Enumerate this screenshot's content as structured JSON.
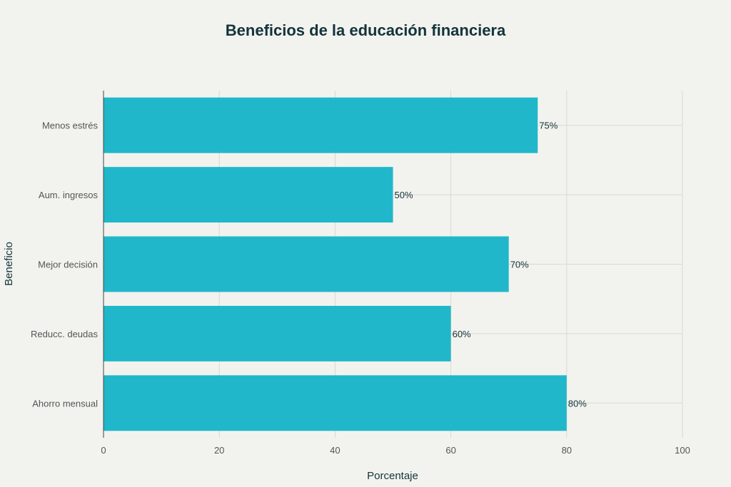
{
  "chart_data": {
    "type": "bar",
    "orientation": "horizontal",
    "title": "Beneficios de la educación financiera",
    "xlabel": "Porcentaje",
    "ylabel": "Beneficio",
    "categories": [
      "Menos estrés",
      "Aum. ingresos",
      "Mejor decisión",
      "Reducc. deudas",
      "Ahorro mensual"
    ],
    "values": [
      75,
      50,
      70,
      60,
      80
    ],
    "data_labels": [
      "75%",
      "50%",
      "70%",
      "60%",
      "80%"
    ],
    "xlim": [
      0,
      100
    ],
    "x_ticks": [
      0,
      20,
      40,
      60,
      80,
      100
    ],
    "x_tick_labels": [
      "0",
      "20",
      "40",
      "60",
      "80",
      "100"
    ],
    "grid": true,
    "bar_color": "#21b7cb"
  }
}
